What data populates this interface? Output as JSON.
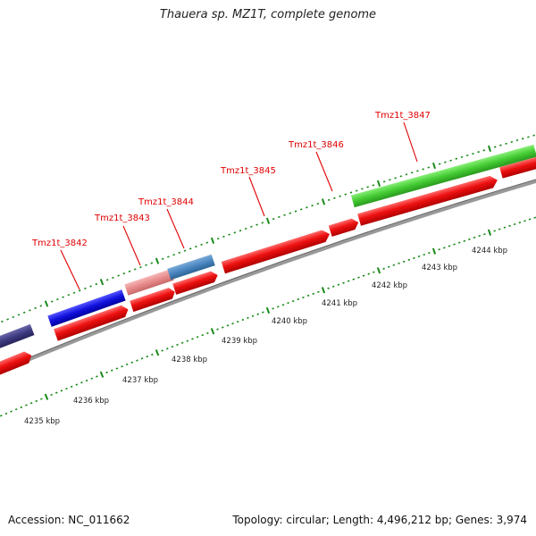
{
  "title": "Thauera sp. MZ1T, complete genome",
  "footer": {
    "accession": "Accession: NC_011662",
    "stats": "Topology: circular; Length: 4,496,212 bp; Genes: 3,974"
  },
  "gene_labels": [
    "Tmz1t_3842",
    "Tmz1t_3843",
    "Tmz1t_3844",
    "Tmz1t_3845",
    "Tmz1t_3846",
    "Tmz1t_3847"
  ],
  "kbp_labels": [
    "4235 kbp",
    "4236 kbp",
    "4237 kbp",
    "4238 kbp",
    "4239 kbp",
    "4240 kbp",
    "4241 kbp",
    "4242 kbp",
    "4243 kbp",
    "4244 kbp"
  ],
  "colors": {
    "cds": "#ee1111",
    "highlight_blue": "#1111dd",
    "highlight_pink": "#e88a8a",
    "highlight_steel": "#4a86c0",
    "highlight_navy": "#3e3a80",
    "highlight_green": "#44cc33",
    "backbone": "#888888",
    "tick": "#1a8a1a",
    "label": "#e00000"
  }
}
